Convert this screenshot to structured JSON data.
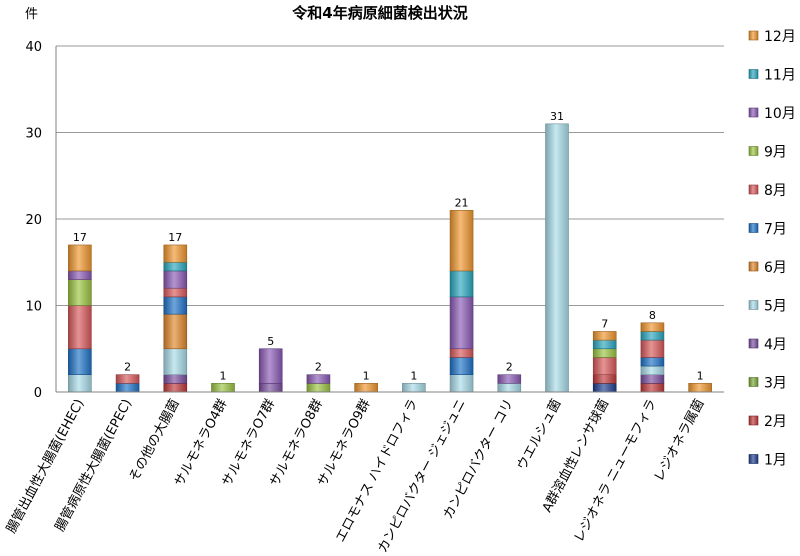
{
  "chart_data": {
    "type": "bar",
    "stacked": true,
    "title": "令和4年病原細菌検出状況",
    "ylabel": "件",
    "xlabel": "",
    "ylim": [
      0,
      40
    ],
    "yticks": [
      0,
      10,
      20,
      30,
      40
    ],
    "grid": true,
    "legend_position": "right",
    "categories": [
      "腸管出血性大腸菌(EHEC)",
      "腸管病原性大腸菌(EPEC)",
      "その他の大腸菌",
      "サルモネラO4群",
      "サルモネラO7群",
      "サルモネラO8群",
      "サルモネラO9群",
      "エロモナス ハイドロフィラ",
      "カンピロバクター ジェジュニ",
      "カンピロバクター コリ",
      "ウエルシュ菌",
      "A群溶血性レンサ球菌",
      "レジオネラ ニューモフィラ",
      "レジオネラ属菌"
    ],
    "totals": [
      17,
      2,
      17,
      1,
      5,
      2,
      1,
      1,
      21,
      2,
      31,
      7,
      8,
      1
    ],
    "series": [
      {
        "name": "1月",
        "color": "#1f3f8f",
        "values": [
          0,
          0,
          0,
          0,
          0,
          0,
          0,
          0,
          0,
          0,
          0,
          1,
          0,
          0
        ]
      },
      {
        "name": "2月",
        "color": "#c0393b",
        "values": [
          0,
          0,
          1,
          0,
          0,
          0,
          0,
          0,
          0,
          0,
          0,
          1,
          1,
          0
        ]
      },
      {
        "name": "3月",
        "color": "#7aa83a",
        "values": [
          0,
          0,
          0,
          0,
          0,
          0,
          0,
          0,
          0,
          0,
          0,
          0,
          0,
          0
        ]
      },
      {
        "name": "4月",
        "color": "#7a4fa0",
        "values": [
          0,
          0,
          1,
          0,
          1,
          0,
          0,
          0,
          0,
          0,
          0,
          0,
          1,
          0
        ]
      },
      {
        "name": "5月",
        "color": "#a8dbe8",
        "values": [
          2,
          0,
          3,
          0,
          0,
          0,
          0,
          1,
          2,
          1,
          31,
          0,
          1,
          0
        ]
      },
      {
        "name": "6月",
        "color": "#e0872a",
        "values": [
          0,
          0,
          4,
          0,
          0,
          0,
          0,
          0,
          0,
          0,
          0,
          0,
          0,
          0
        ]
      },
      {
        "name": "7月",
        "color": "#1f73c8",
        "values": [
          3,
          1,
          2,
          0,
          0,
          0,
          0,
          0,
          2,
          0,
          0,
          0,
          1,
          0
        ]
      },
      {
        "name": "8月",
        "color": "#d9595b",
        "values": [
          5,
          1,
          1,
          0,
          0,
          0,
          0,
          0,
          1,
          0,
          0,
          2,
          2,
          0
        ]
      },
      {
        "name": "9月",
        "color": "#9bc441",
        "values": [
          3,
          0,
          0,
          1,
          0,
          1,
          0,
          0,
          0,
          0,
          0,
          1,
          0,
          0
        ]
      },
      {
        "name": "10月",
        "color": "#8a5ab5",
        "values": [
          1,
          0,
          2,
          0,
          4,
          1,
          0,
          0,
          6,
          1,
          0,
          0,
          0,
          0
        ]
      },
      {
        "name": "11月",
        "color": "#2aa8bf",
        "values": [
          0,
          0,
          1,
          0,
          0,
          0,
          0,
          0,
          3,
          0,
          0,
          1,
          1,
          0
        ]
      },
      {
        "name": "12月",
        "color": "#f0962e",
        "values": [
          3,
          0,
          2,
          0,
          0,
          0,
          1,
          0,
          7,
          0,
          0,
          1,
          1,
          1
        ]
      }
    ]
  }
}
